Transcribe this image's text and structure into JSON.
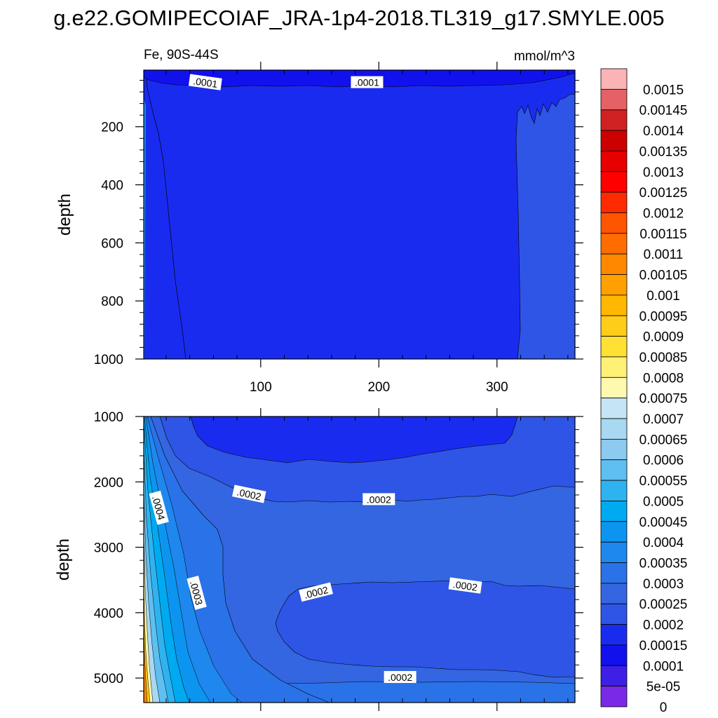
{
  "title": "g.e22.GOMIPECOIAF_JRA-1p4-2018.TL319_g17.SMYLE.005",
  "chart_data": {
    "type": "heatmap",
    "variable_label": "Fe, 90S-44S",
    "units_label": "mmol/m^3",
    "ylabel": "depth",
    "x_ticks": [
      100,
      200,
      300
    ],
    "xlim": [
      1,
      366
    ],
    "panels": [
      {
        "name": "upper",
        "ylim": [
          1000,
          5
        ],
        "y_ticks": [
          200,
          400,
          600,
          800,
          1000
        ],
        "x_tick_labels_shown": true,
        "contour_labels": [
          {
            "text": ".0001",
            "x": 53,
            "depth": 50
          },
          {
            "text": ".0001",
            "x": 190,
            "depth": 50
          }
        ]
      },
      {
        "name": "lower",
        "ylim": [
          5375,
          1000
        ],
        "y_ticks": [
          1000,
          2000,
          3000,
          4000,
          5000
        ],
        "x_tick_labels_shown": false,
        "contour_labels": [
          {
            "text": ".0002",
            "x": 90,
            "depth": 2200
          },
          {
            "text": ".0002",
            "x": 200,
            "depth": 2280
          },
          {
            "text": ".0004",
            "x": 13,
            "depth": 2400
          },
          {
            "text": ".0003",
            "x": 45,
            "depth": 3700
          },
          {
            "text": ".0002",
            "x": 147,
            "depth": 3700
          },
          {
            "text": ".0002",
            "x": 273,
            "depth": 3600
          },
          {
            "text": ".0002",
            "x": 218,
            "depth": 5000
          }
        ]
      }
    ],
    "colorbar": {
      "labels": [
        "0.0015",
        "0.00145",
        "0.0014",
        "0.00135",
        "0.0013",
        "0.00125",
        "0.0012",
        "0.00115",
        "0.0011",
        "0.00105",
        "0.001",
        "0.00095",
        "0.0009",
        "0.00085",
        "0.0008",
        "0.00075",
        "0.0007",
        "0.00065",
        "0.0006",
        "0.00055",
        "0.0005",
        "0.00045",
        "0.0004",
        "0.00035",
        "0.0003",
        "0.00025",
        "0.0002",
        "0.00015",
        "0.0001",
        "5e-05",
        "0"
      ],
      "colors_top_to_bottom": [
        "#fbb3b5",
        "#e46266",
        "#d02222",
        "#cc0000",
        "#e60000",
        "#ff0000",
        "#ff2b00",
        "#ff5500",
        "#ff6d00",
        "#ff8800",
        "#ffa000",
        "#ffb700",
        "#ffcc1a",
        "#ffe033",
        "#fff175",
        "#fff9b0",
        "#c5e4f5",
        "#a8d8f2",
        "#8ccaf0",
        "#5fbff0",
        "#2fb3f0",
        "#00aaf0",
        "#0c95f0",
        "#1e88ee",
        "#2a72e8",
        "#3366e0",
        "#2e55e5",
        "#1a2bf0",
        "#1111ee",
        "#3d1fe6",
        "#7a2ae6"
      ]
    },
    "fill_colors": {
      "lt_0.0001": "#1111ee",
      "0.0001-0.00015": "#1a2bf0",
      "0.00015-0.0002": "#2e55e5",
      "0.0002-0.00025": "#3366e0",
      "0.00025-0.0003": "#2a72e8",
      "0.0003-0.00035": "#1e88ee"
    }
  }
}
